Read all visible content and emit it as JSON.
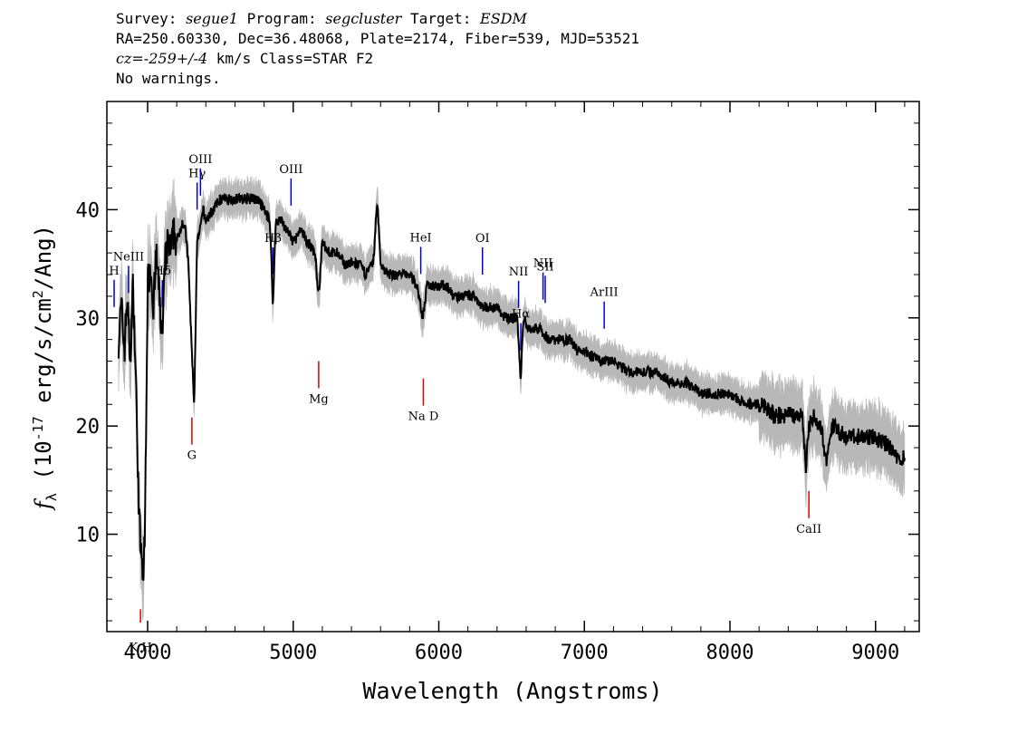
{
  "header": {
    "line1_a": "Survey: ",
    "survey": "segue1",
    "line1_b": " Program: ",
    "program": "segcluster",
    "line1_c": " Target: ",
    "target": "ESDM",
    "line2": "RA=250.60330, Dec=36.48068, Plate=2174, Fiber=539, MJD=53521",
    "line3_cz": "cz=-259+/-4",
    "line3_rest": " km/s Class=STAR F2",
    "line4": "No warnings."
  },
  "chart_data": {
    "type": "line",
    "xlabel": "Wavelength (Angstroms)",
    "ylabel": "f_λ (10^-17 erg/s/cm^2/Ang)",
    "xlim": [
      3720,
      9300
    ],
    "ylim": [
      1,
      50
    ],
    "x_ticks": [
      4000,
      5000,
      6000,
      7000,
      8000,
      9000
    ],
    "y_ticks": [
      10,
      20,
      30,
      40
    ],
    "grid": false,
    "colors": {
      "flux": "#000000",
      "error_band": "#b8b8b8",
      "emission_line": "#0000cc",
      "absorption_line": "#dd0000"
    },
    "series": [
      {
        "x": [
          3800,
          3820,
          3840,
          3860,
          3880,
          3900,
          3920,
          3940,
          3955,
          3968,
          3980,
          4000,
          4020,
          4040,
          4060,
          4080,
          4101,
          4120,
          4140,
          4160,
          4180,
          4200,
          4220,
          4240,
          4260,
          4280,
          4300,
          4310,
          4320,
          4340,
          4360,
          4380,
          4400,
          4450,
          4500,
          4550,
          4600,
          4650,
          4700,
          4750,
          4800,
          4840,
          4861,
          4880,
          4920,
          4960,
          5000,
          5050,
          5100,
          5150,
          5175,
          5200,
          5250,
          5300,
          5350,
          5400,
          5450,
          5500,
          5550,
          5577,
          5600,
          5650,
          5700,
          5750,
          5800,
          5850,
          5890,
          5920,
          5950,
          6000,
          6050,
          6100,
          6150,
          6200,
          6250,
          6300,
          6350,
          6400,
          6450,
          6500,
          6540,
          6563,
          6580,
          6620,
          6650,
          6700,
          6750,
          6800,
          6850,
          6900,
          6950,
          7000,
          7100,
          7200,
          7300,
          7400,
          7500,
          7600,
          7700,
          7800,
          7900,
          8000,
          8100,
          8200,
          8300,
          8400,
          8498,
          8520,
          8542,
          8580,
          8620,
          8662,
          8700,
          8800,
          8900,
          9000,
          9100,
          9150,
          9200
        ],
        "y": [
          28,
          31,
          27,
          32,
          26,
          33,
          24,
          12,
          8,
          6,
          9,
          33,
          35,
          31,
          36,
          32,
          28,
          35,
          37,
          36,
          38,
          37,
          38,
          39,
          38,
          35,
          28,
          25,
          22,
          37,
          38,
          40,
          39,
          40,
          41,
          41,
          41,
          41,
          41,
          41,
          40,
          39,
          31,
          39,
          39,
          38,
          37,
          38,
          37,
          36,
          32,
          37,
          36,
          36,
          35,
          35,
          35,
          34,
          35,
          41,
          35,
          34,
          34,
          34,
          34,
          33,
          30,
          33,
          33,
          33,
          33,
          32,
          32,
          32,
          32,
          31,
          31,
          31,
          30,
          30,
          30,
          24,
          30,
          29,
          29,
          29,
          28,
          28,
          28,
          28,
          27,
          27,
          26,
          26,
          25,
          25,
          25,
          24,
          24,
          23,
          23,
          23,
          22,
          22,
          21,
          21,
          21,
          16,
          20,
          21,
          20,
          17,
          20,
          19,
          19,
          19,
          18,
          17,
          17
        ]
      }
    ],
    "lines": [
      {
        "label": "H",
        "wave": 3770,
        "type": "emission"
      },
      {
        "label": "NeIII",
        "wave": 3869,
        "type": "emission"
      },
      {
        "label": "Hδ",
        "wave": 4101,
        "type": "emission"
      },
      {
        "label": "Hγ",
        "wave": 4340,
        "type": "emission"
      },
      {
        "label": "OIII",
        "wave": 4363,
        "type": "emission"
      },
      {
        "label": "Hβ",
        "wave": 4861,
        "type": "emission"
      },
      {
        "label": "OIII",
        "wave": 4985,
        "type": "emission"
      },
      {
        "label": "HeI",
        "wave": 5876,
        "type": "emission"
      },
      {
        "label": "OI",
        "wave": 6300,
        "type": "emission"
      },
      {
        "label": "NII",
        "wave": 6548,
        "type": "emission"
      },
      {
        "label": "Hα",
        "wave": 6563,
        "type": "emission"
      },
      {
        "label": "NII",
        "wave": 6716,
        "type": "emission"
      },
      {
        "label": "SII",
        "wave": 6731,
        "type": "emission"
      },
      {
        "label": "ArIII",
        "wave": 7136,
        "type": "emission"
      },
      {
        "label": "K H",
        "wave": 3951,
        "type": "absorption"
      },
      {
        "label": "G",
        "wave": 4304,
        "type": "absorption"
      },
      {
        "label": "Mg",
        "wave": 5175,
        "type": "absorption"
      },
      {
        "label": "Na D",
        "wave": 5894,
        "type": "absorption"
      },
      {
        "label": "CaII",
        "wave": 8542,
        "type": "absorption"
      }
    ]
  }
}
